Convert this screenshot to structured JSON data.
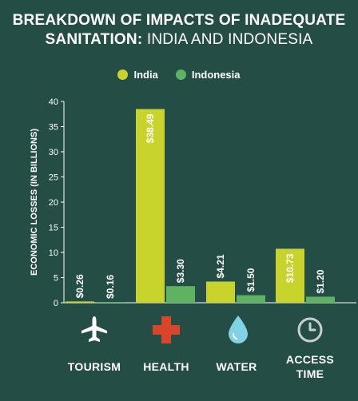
{
  "title": {
    "line1": "BREAKDOWN OF IMPACTS OF INADEQUATE",
    "line2_bold": "SANITATION:",
    "line2_light": "INDIA AND INDONESIA"
  },
  "colors": {
    "background": "#244d45",
    "india": "#c8d42b",
    "indonesia": "#5fb261",
    "axis": "#ffffff"
  },
  "legend": [
    {
      "label": "India",
      "color": "#c8d42b"
    },
    {
      "label": "Indonesia",
      "color": "#5fb261"
    }
  ],
  "icons": [
    "airplane-icon",
    "medical-cross-icon",
    "water-drop-icon",
    "clock-icon"
  ],
  "category_labels": [
    {
      "line1": "TOURISM",
      "line2": ""
    },
    {
      "line1": "HEALTH",
      "line2": ""
    },
    {
      "line1": "WATER",
      "line2": ""
    },
    {
      "line1": "ACCESS",
      "line2": "TIME"
    }
  ],
  "chart_data": {
    "type": "bar",
    "categories": [
      "TOURISM",
      "HEALTH",
      "WATER",
      "ACCESS TIME"
    ],
    "series": [
      {
        "name": "India",
        "values": [
          0.26,
          38.49,
          4.21,
          10.73
        ],
        "labels": [
          "$0.26",
          "$38.49",
          "$4.21",
          "$10.73"
        ]
      },
      {
        "name": "Indonesia",
        "values": [
          0.16,
          3.3,
          1.5,
          1.2
        ],
        "labels": [
          "$0.16",
          "$3.30",
          "$1.50",
          "$1.20"
        ]
      }
    ],
    "title": "BREAKDOWN OF IMPACTS OF INADEQUATE SANITATION: INDIA AND INDONESIA",
    "xlabel": "",
    "ylabel": "ECONOMIC LOSSES (IN BILLIONS)",
    "ylim": [
      0,
      40
    ],
    "yticks": [
      0,
      5,
      10,
      15,
      20,
      25,
      30,
      35,
      40
    ],
    "grid": false,
    "legend_position": "top"
  }
}
